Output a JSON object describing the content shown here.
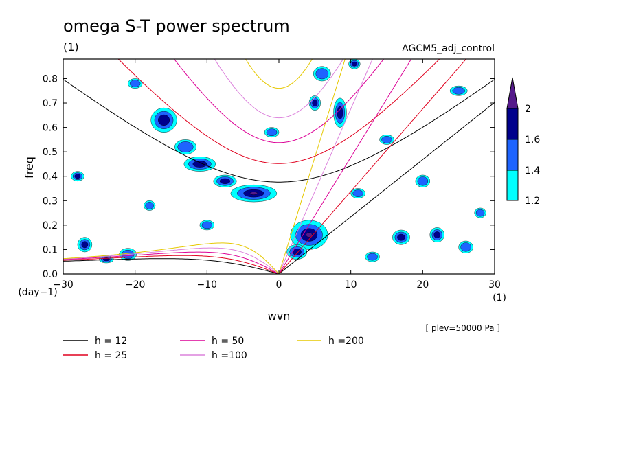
{
  "chart_data": {
    "type": "contour",
    "title": "omega S-T power spectrum",
    "title_units": "(1)",
    "experiment": "AGCM5_adj_control",
    "xlabel": "wvn",
    "ylabel": "freq",
    "xlim": [
      -30,
      30
    ],
    "ylim": [
      0,
      0.88
    ],
    "x_ticks": [
      -30,
      -20,
      -10,
      0,
      10,
      20,
      30
    ],
    "x_tick_labels": [
      "−30",
      "−20",
      "−10",
      "0",
      "10",
      "20",
      "30"
    ],
    "y_ticks": [
      0.0,
      0.1,
      0.2,
      0.3,
      0.4,
      0.5,
      0.6,
      0.7,
      0.8
    ],
    "y_tick_labels": [
      "0.0",
      "0.1",
      "0.2",
      "0.3",
      "0.4",
      "0.5",
      "0.6",
      "0.7",
      "0.8"
    ],
    "y_unit_label": "(day−1)",
    "x_unit_label": "(1)",
    "plev_note": "[ plev=50000 Pa ]",
    "colorbar": {
      "levels": [
        1.2,
        1.4,
        1.6,
        2
      ],
      "labels": [
        "1.2",
        "1.4",
        "1.6",
        "2"
      ],
      "colors": [
        "#00ffff",
        "#1e64ff",
        "#00008c",
        "#551a8b"
      ]
    },
    "dispersion_curves": [
      {
        "label": "h = 12",
        "h": 12,
        "color": "#000000"
      },
      {
        "label": "h = 25",
        "h": 25,
        "color": "#e0001e"
      },
      {
        "label": "h = 50",
        "h": 50,
        "color": "#dc0096"
      },
      {
        "label": "h =100",
        "h": 100,
        "color": "#dc82dc"
      },
      {
        "label": "h =200",
        "h": 200,
        "color": "#e6c800"
      }
    ],
    "blobs": [
      {
        "x": -3.5,
        "y": 0.33,
        "rx": 3.2,
        "ry": 0.035,
        "level": 3
      },
      {
        "x": -7.5,
        "y": 0.38,
        "rx": 1.6,
        "ry": 0.025,
        "level": 2
      },
      {
        "x": -11,
        "y": 0.45,
        "rx": 2.2,
        "ry": 0.03,
        "level": 2
      },
      {
        "x": -16,
        "y": 0.63,
        "rx": 1.8,
        "ry": 0.05,
        "level": 2
      },
      {
        "x": -13,
        "y": 0.52,
        "rx": 1.5,
        "ry": 0.03,
        "level": 1
      },
      {
        "x": 4.2,
        "y": 0.16,
        "rx": 2.6,
        "ry": 0.06,
        "level": 3
      },
      {
        "x": 2.5,
        "y": 0.09,
        "rx": 1.4,
        "ry": 0.03,
        "level": 2
      },
      {
        "x": 8.5,
        "y": 0.66,
        "rx": 0.9,
        "ry": 0.06,
        "level": 2
      },
      {
        "x": 6,
        "y": 0.82,
        "rx": 1.2,
        "ry": 0.03,
        "level": 1
      },
      {
        "x": -1,
        "y": 0.58,
        "rx": 1.0,
        "ry": 0.02,
        "level": 1
      },
      {
        "x": 10.5,
        "y": 0.86,
        "rx": 0.8,
        "ry": 0.02,
        "level": 2
      },
      {
        "x": 17,
        "y": 0.15,
        "rx": 1.2,
        "ry": 0.03,
        "level": 2
      },
      {
        "x": 22,
        "y": 0.16,
        "rx": 1.0,
        "ry": 0.03,
        "level": 2
      },
      {
        "x": 26,
        "y": 0.11,
        "rx": 1.0,
        "ry": 0.025,
        "level": 1
      },
      {
        "x": -27,
        "y": 0.12,
        "rx": 1.0,
        "ry": 0.03,
        "level": 2
      },
      {
        "x": -21,
        "y": 0.08,
        "rx": 1.2,
        "ry": 0.025,
        "level": 1
      },
      {
        "x": 20,
        "y": 0.38,
        "rx": 1.0,
        "ry": 0.025,
        "level": 1
      },
      {
        "x": -20,
        "y": 0.78,
        "rx": 1.0,
        "ry": 0.02,
        "level": 1
      },
      {
        "x": 25,
        "y": 0.75,
        "rx": 1.2,
        "ry": 0.02,
        "level": 1
      },
      {
        "x": -28,
        "y": 0.4,
        "rx": 0.9,
        "ry": 0.02,
        "level": 2
      },
      {
        "x": 11,
        "y": 0.33,
        "rx": 1.0,
        "ry": 0.02,
        "level": 1
      },
      {
        "x": 15,
        "y": 0.55,
        "rx": 1.0,
        "ry": 0.02,
        "level": 1
      },
      {
        "x": -24,
        "y": 0.06,
        "rx": 1.0,
        "ry": 0.015,
        "level": 2
      },
      {
        "x": 5,
        "y": 0.7,
        "rx": 0.8,
        "ry": 0.03,
        "level": 2
      },
      {
        "x": -10,
        "y": 0.2,
        "rx": 1.0,
        "ry": 0.02,
        "level": 1
      },
      {
        "x": 13,
        "y": 0.07,
        "rx": 1.0,
        "ry": 0.02,
        "level": 1
      },
      {
        "x": -18,
        "y": 0.28,
        "rx": 0.8,
        "ry": 0.02,
        "level": 1
      },
      {
        "x": 28,
        "y": 0.25,
        "rx": 0.8,
        "ry": 0.02,
        "level": 1
      }
    ]
  }
}
